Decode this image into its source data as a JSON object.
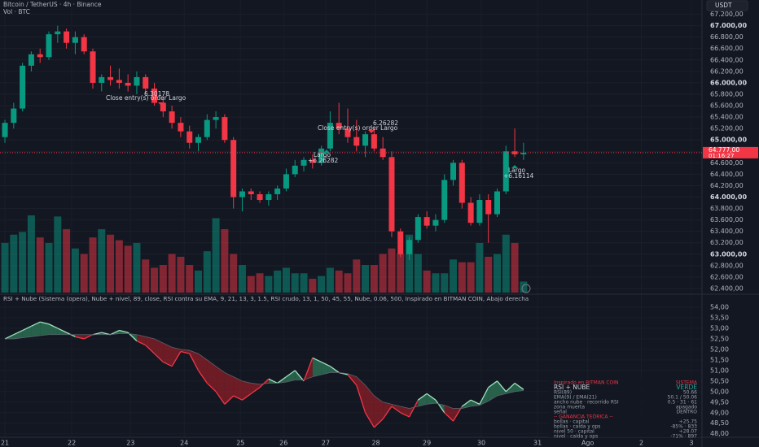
{
  "chart_data": [
    {
      "type": "candlestick",
      "title": "Bitcoin / TetherUS · 4h · Binance",
      "subtitle": "Vol · BTC",
      "currency": "USDT",
      "up_color": "#089981",
      "down_color": "#f23645",
      "open": [
        65050,
        65300,
        65550,
        66300,
        66500,
        66450,
        66850,
        66900,
        66700,
        66800,
        66550,
        66000,
        66100,
        66050,
        66000,
        65950,
        66100,
        65900,
        65650,
        65500,
        65300,
        65150,
        64950,
        65050,
        65350,
        65400,
        65000,
        64000,
        64100,
        64050,
        63950,
        64050,
        64150,
        64400,
        64550,
        64650,
        64600,
        64850,
        65300,
        65200,
        65050,
        64900,
        65100,
        64850,
        64700,
        63400,
        63000,
        63250,
        63650,
        63500,
        63600,
        64300,
        64600,
        63900,
        63550,
        63950,
        63700,
        64100,
        64800,
        64750
      ],
      "high": [
        65350,
        65650,
        66350,
        66550,
        66600,
        66900,
        67000,
        66950,
        66900,
        66850,
        66600,
        66150,
        66300,
        66250,
        66150,
        66200,
        66150,
        66000,
        65750,
        65600,
        65400,
        65250,
        65100,
        65450,
        65500,
        65450,
        65050,
        64150,
        64150,
        64100,
        64100,
        64200,
        64500,
        64650,
        64700,
        64750,
        64900,
        65500,
        65650,
        65550,
        65350,
        65150,
        65200,
        65050,
        64800,
        63450,
        63300,
        63700,
        63750,
        63700,
        64400,
        64650,
        64650,
        64000,
        64050,
        64050,
        64150,
        64900,
        65200,
        64950
      ],
      "low": [
        64950,
        65200,
        65500,
        66200,
        66350,
        66400,
        66700,
        66600,
        66500,
        66500,
        65900,
        65850,
        65950,
        65900,
        65850,
        65800,
        65800,
        65600,
        65400,
        65200,
        65050,
        64850,
        64800,
        65000,
        65200,
        64950,
        63800,
        63750,
        63950,
        63900,
        63850,
        63950,
        64100,
        64350,
        64450,
        64500,
        64550,
        64800,
        65100,
        64950,
        64800,
        64700,
        64800,
        64650,
        63300,
        62950,
        62900,
        63200,
        63450,
        63400,
        63550,
        64200,
        63800,
        63500,
        63500,
        63200,
        63650,
        64050,
        64700,
        64650
      ],
      "close": [
        65300,
        65550,
        66300,
        66500,
        66450,
        66850,
        66900,
        66700,
        66800,
        66550,
        66000,
        66100,
        66050,
        66000,
        65950,
        66100,
        65900,
        65650,
        65500,
        65300,
        65150,
        64950,
        65050,
        65350,
        65400,
        65000,
        64000,
        64100,
        64050,
        63950,
        64050,
        64150,
        64400,
        64550,
        64650,
        64600,
        64850,
        65300,
        65200,
        65050,
        64900,
        65100,
        64850,
        64700,
        63400,
        63000,
        63250,
        63650,
        63500,
        63600,
        64300,
        64600,
        63900,
        63550,
        63950,
        63700,
        64100,
        64800,
        64750,
        64777
      ],
      "volume": [
        900,
        1050,
        1100,
        1400,
        1000,
        900,
        1380,
        1150,
        800,
        700,
        1000,
        1150,
        1050,
        950,
        850,
        900,
        600,
        450,
        500,
        700,
        650,
        500,
        400,
        750,
        1350,
        1150,
        700,
        500,
        300,
        350,
        300,
        400,
        450,
        350,
        350,
        250,
        300,
        450,
        400,
        350,
        600,
        500,
        500,
        700,
        800,
        700,
        1050,
        700,
        400,
        350,
        350,
        600,
        550,
        550,
        900,
        650,
        700,
        1050,
        900,
        200
      ],
      "ylim": [
        62300,
        67450
      ],
      "yticks": [
        {
          "value": 67200,
          "label": "67.200,00"
        },
        {
          "value": 67000,
          "label": "67.000,00"
        },
        {
          "value": 66800,
          "label": "66.800,00"
        },
        {
          "value": 66600,
          "label": "66.600,00"
        },
        {
          "value": 66400,
          "label": "66.400,00"
        },
        {
          "value": 66200,
          "label": "66.200,00"
        },
        {
          "value": 66000,
          "label": "66.000,00"
        },
        {
          "value": 65800,
          "label": "65.800,00"
        },
        {
          "value": 65600,
          "label": "65.600,00"
        },
        {
          "value": 65400,
          "label": "65.400,00"
        },
        {
          "value": 65200,
          "label": "65.200,00"
        },
        {
          "value": 65000,
          "label": "65.000,00"
        },
        {
          "value": 64800,
          "label": "64.800,00"
        },
        {
          "value": 64600,
          "label": "64.600,00"
        },
        {
          "value": 64400,
          "label": "64.400,00"
        },
        {
          "value": 64200,
          "label": "64.200,00"
        },
        {
          "value": 64000,
          "label": "64.000,00"
        },
        {
          "value": 63800,
          "label": "63.800,00"
        },
        {
          "value": 63600,
          "label": "63.600,00"
        },
        {
          "value": 63400,
          "label": "63.400,00"
        },
        {
          "value": 63200,
          "label": "63.200,00"
        },
        {
          "value": 63000,
          "label": "63.000,00"
        },
        {
          "value": 62800,
          "label": "62.800,00"
        },
        {
          "value": 62600,
          "label": "62.600,00"
        },
        {
          "value": 62400,
          "label": "62.400,00"
        }
      ],
      "xlim": [
        -0.56,
        79.3
      ],
      "xticks": [
        {
          "value": 0,
          "label": "21"
        },
        {
          "value": 7.6,
          "label": "22"
        },
        {
          "value": 14.3,
          "label": "23"
        },
        {
          "value": 20.4,
          "label": "24"
        },
        {
          "value": 26.8,
          "label": "25"
        },
        {
          "value": 31.7,
          "label": "26"
        },
        {
          "value": 36.5,
          "label": "27"
        },
        {
          "value": 42.2,
          "label": "28"
        },
        {
          "value": 48,
          "label": "29"
        },
        {
          "value": 54.2,
          "label": "30"
        },
        {
          "value": 60.6,
          "label": "31"
        },
        {
          "value": 66.3,
          "label": "Ago"
        },
        {
          "value": 72.4,
          "label": "2"
        },
        {
          "value": 78.1,
          "label": "3"
        }
      ],
      "last_price": {
        "value": 64777,
        "label": "64.777,00"
      },
      "countdown": "01:16:27",
      "annotations": [
        "6.30178",
        "Close entry(s) order Largo",
        "6.26282",
        "Close entry(s) order Largo",
        "Largo",
        "+6.26282",
        "Largo",
        "+6.16114"
      ]
    },
    {
      "type": "area",
      "title": "RSI + Nube (Sistema (opera), Nube + nivel, 89, close, RSI contra su EMA, 9, 21, 13, 3, 1.5, RSI crudo, 13, 1, 50, 45, 55, Nube, 0.06, 500, Inspirado en BITMAN COIN, Abajo derecha",
      "up_color": "#2f7a5a",
      "down_color": "#8c1f27",
      "up_line": "#9fe3bd",
      "down_line": "#f23645",
      "rsi": [
        52.5,
        52.7,
        52.9,
        53.1,
        53.3,
        53.2,
        53.0,
        52.8,
        52.6,
        52.5,
        52.7,
        52.8,
        52.7,
        52.9,
        52.8,
        52.4,
        52.2,
        51.8,
        51.4,
        51.2,
        51.9,
        51.8,
        51.0,
        50.4,
        50.0,
        49.4,
        49.8,
        49.6,
        49.9,
        50.2,
        50.6,
        50.4,
        50.7,
        51.0,
        50.5,
        51.6,
        51.4,
        51.2,
        50.9,
        50.8,
        50.3,
        49.0,
        48.3,
        48.7,
        49.3,
        49.0,
        48.8,
        49.6,
        49.9,
        49.6,
        49.0,
        48.6,
        49.3,
        49.6,
        49.4,
        50.2,
        50.5,
        50.0,
        50.4,
        50.1
      ],
      "ema": [
        52.5,
        52.5,
        52.55,
        52.6,
        52.65,
        52.7,
        52.7,
        52.7,
        52.7,
        52.7,
        52.7,
        52.7,
        52.7,
        52.75,
        52.75,
        52.7,
        52.6,
        52.5,
        52.3,
        52.1,
        52.0,
        51.95,
        51.8,
        51.5,
        51.2,
        50.9,
        50.7,
        50.5,
        50.4,
        50.35,
        50.4,
        50.4,
        50.45,
        50.55,
        50.55,
        50.7,
        50.8,
        50.9,
        50.9,
        50.85,
        50.7,
        50.3,
        49.8,
        49.5,
        49.4,
        49.3,
        49.2,
        49.3,
        49.4,
        49.45,
        49.35,
        49.2,
        49.2,
        49.3,
        49.35,
        49.55,
        49.8,
        49.9,
        50.0,
        50.05
      ],
      "ylim": [
        47.45,
        54.5
      ],
      "yticks": [
        {
          "value": 54,
          "label": "54,00"
        },
        {
          "value": 53.5,
          "label": "53,50"
        },
        {
          "value": 53,
          "label": "53,00"
        },
        {
          "value": 52.5,
          "label": "52,50"
        },
        {
          "value": 52,
          "label": "52,00"
        },
        {
          "value": 51.5,
          "label": "51,50"
        },
        {
          "value": 51,
          "label": "51,00"
        },
        {
          "value": 50.5,
          "label": "50,50"
        },
        {
          "value": 50,
          "label": "50,00"
        },
        {
          "value": 49.5,
          "label": "49,50"
        },
        {
          "value": 49,
          "label": "49,00"
        },
        {
          "value": 48.5,
          "label": "48,50"
        },
        {
          "value": 48,
          "label": "48,00"
        }
      ]
    }
  ],
  "table": {
    "rows": [
      [
        "Inspirado en BITMAN COIN",
        "SISTEMA"
      ],
      [
        "RSI + NUBE",
        "VERDE"
      ],
      [
        "RSI(89)",
        "50.66"
      ],
      [
        "EMA(9) / EMA(21)",
        "50.1 / 50.06"
      ],
      [
        "ancho nube · recorrido RSI",
        "0.5 · 31 · 61"
      ],
      [
        "zona muerta",
        "apagado"
      ],
      [
        "señal",
        "DENTRO"
      ],
      [
        "-- GANANCIA TEÓRICA --"
      ],
      [
        "bollas · capital",
        "+25.75"
      ],
      [
        "bollas · caída y ops",
        "-85% · 833"
      ],
      [
        "nivel 50 · capital",
        "+28.07"
      ],
      [
        "nivel · caída y ops",
        "-71% · 897"
      ]
    ]
  }
}
